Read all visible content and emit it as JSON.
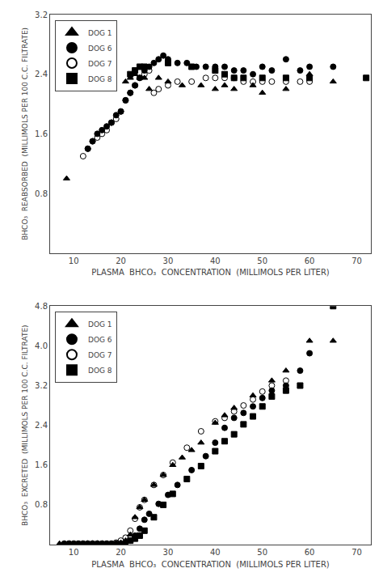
{
  "chart_data": [
    {
      "type": "scatter",
      "xlabel": "PLASMA  BHCO₃  CONCENTRATION  (MILLIMOLS PER LITER)",
      "ylabel": "BHCO₃  REABSORBED  (MILLIMOLS PER 100 C.C. FILTRATE)",
      "xlim": [
        5,
        73
      ],
      "ylim": [
        0,
        3.2
      ],
      "xticks": [
        10,
        20,
        30,
        40,
        50,
        60,
        70
      ],
      "yticks": [
        0.8,
        1.6,
        2.4,
        3.2
      ],
      "grid": false,
      "legend": "upper left",
      "series": [
        {
          "name": "DOG 1",
          "color": "#000000",
          "marker": "triangle-up",
          "x": [
            8.5,
            21,
            22,
            23,
            24,
            25,
            26,
            28,
            30,
            33,
            37,
            40,
            42,
            44,
            48,
            50,
            55,
            60,
            65
          ],
          "values": [
            1.0,
            2.3,
            2.35,
            2.4,
            2.35,
            2.35,
            2.2,
            2.35,
            2.3,
            2.25,
            2.25,
            2.2,
            2.25,
            2.2,
            2.25,
            2.15,
            2.2,
            2.4,
            2.3
          ]
        },
        {
          "name": "DOG 6",
          "color": "#000000",
          "marker": "circle",
          "x": [
            13,
            14,
            15,
            16,
            17,
            18,
            19,
            20,
            21,
            22,
            23,
            24,
            25,
            26,
            27,
            28,
            29,
            30,
            32,
            34,
            36,
            38,
            40,
            42,
            44,
            46,
            48,
            50,
            52,
            55,
            58,
            60,
            65
          ],
          "values": [
            1.4,
            1.5,
            1.6,
            1.65,
            1.7,
            1.75,
            1.85,
            1.9,
            2.05,
            2.15,
            2.25,
            2.35,
            2.45,
            2.5,
            2.55,
            2.6,
            2.65,
            2.6,
            2.55,
            2.55,
            2.5,
            2.5,
            2.5,
            2.5,
            2.45,
            2.45,
            2.4,
            2.5,
            2.45,
            2.6,
            2.45,
            2.5,
            2.5
          ]
        },
        {
          "name": "DOG 7",
          "color": "#000000",
          "marker": "circle-open",
          "x": [
            12,
            13,
            14,
            15,
            16,
            17,
            18,
            19,
            20,
            21,
            22,
            23,
            24,
            25,
            26,
            27,
            28,
            30,
            32,
            35,
            38,
            40,
            42,
            44,
            46,
            48,
            50,
            52,
            55,
            58,
            60
          ],
          "values": [
            1.3,
            1.4,
            1.5,
            1.55,
            1.6,
            1.65,
            1.75,
            1.8,
            1.9,
            2.05,
            2.15,
            2.25,
            2.35,
            2.4,
            2.45,
            2.15,
            2.2,
            2.25,
            2.3,
            2.3,
            2.35,
            2.35,
            2.35,
            2.35,
            2.3,
            2.3,
            2.3,
            2.3,
            2.3,
            2.3,
            2.3
          ]
        },
        {
          "name": "DOG 8",
          "color": "#000000",
          "marker": "square",
          "x": [
            22,
            23,
            24,
            25,
            30,
            35,
            40,
            42,
            44,
            46,
            50,
            55,
            60,
            72
          ],
          "values": [
            2.4,
            2.45,
            2.5,
            2.5,
            2.55,
            2.5,
            2.45,
            2.4,
            2.35,
            2.35,
            2.35,
            2.35,
            2.35,
            2.35
          ]
        }
      ]
    },
    {
      "type": "scatter",
      "xlabel": "PLASMA  BHCO₃  CONCENTRATION  (MILLIMOLS PER LITER)",
      "ylabel": "BHCO₃  EXCRETED  (MILLIMOLS PER 100 C.C. FILTRATE)",
      "xlim": [
        5,
        73
      ],
      "ylim": [
        0,
        4.8
      ],
      "xticks": [
        10,
        20,
        30,
        40,
        50,
        60,
        70
      ],
      "yticks": [
        0.8,
        1.6,
        2.4,
        3.2,
        {
          "value": 4.0,
          "label": "4.0"
        },
        4.8
      ],
      "grid": false,
      "legend": "upper left",
      "series": [
        {
          "name": "DOG 1",
          "color": "#000000",
          "marker": "triangle-up",
          "x": [
            7,
            8,
            9,
            10,
            11,
            12,
            13,
            14,
            15,
            16,
            17,
            18,
            19,
            20,
            21,
            22,
            23,
            24,
            25,
            27,
            29,
            31,
            33,
            35,
            37,
            40,
            42,
            44,
            48,
            52,
            55,
            60,
            65
          ],
          "values": [
            0.02,
            0.02,
            0.02,
            0.02,
            0.02,
            0.02,
            0.02,
            0.02,
            0.02,
            0.02,
            0.02,
            0.02,
            0.02,
            0.04,
            0.08,
            0.2,
            0.55,
            0.75,
            0.9,
            1.2,
            1.4,
            1.6,
            1.75,
            1.9,
            2.05,
            2.45,
            2.6,
            2.75,
            3.0,
            3.3,
            3.5,
            4.1,
            4.1
          ]
        },
        {
          "name": "DOG 6",
          "color": "#000000",
          "marker": "circle",
          "x": [
            8,
            9,
            10,
            11,
            12,
            13,
            14,
            15,
            16,
            17,
            18,
            19,
            20,
            21,
            22,
            23,
            24,
            25,
            26,
            28,
            30,
            32,
            35,
            38,
            40,
            42,
            44,
            46,
            48,
            50,
            52,
            55,
            58,
            60
          ],
          "values": [
            0.02,
            0.02,
            0.02,
            0.02,
            0.02,
            0.02,
            0.02,
            0.02,
            0.02,
            0.02,
            0.02,
            0.02,
            0.02,
            0.04,
            0.08,
            0.18,
            0.32,
            0.5,
            0.62,
            0.82,
            1.0,
            1.2,
            1.5,
            1.78,
            2.05,
            2.35,
            2.55,
            2.65,
            2.78,
            2.95,
            3.1,
            3.2,
            3.5,
            3.85
          ]
        },
        {
          "name": "DOG 7",
          "color": "#000000",
          "marker": "circle-open",
          "x": [
            9,
            10,
            11,
            12,
            13,
            14,
            15,
            16,
            17,
            18,
            19,
            20,
            21,
            22,
            23,
            24,
            25,
            27,
            29,
            31,
            34,
            37,
            40,
            42,
            44,
            46,
            48,
            50,
            52,
            55
          ],
          "values": [
            0.02,
            0.02,
            0.02,
            0.02,
            0.02,
            0.02,
            0.02,
            0.02,
            0.02,
            0.02,
            0.04,
            0.08,
            0.14,
            0.28,
            0.52,
            0.75,
            0.9,
            1.2,
            1.4,
            1.65,
            1.95,
            2.28,
            2.48,
            2.55,
            2.68,
            2.8,
            2.92,
            3.08,
            3.2,
            3.3
          ]
        },
        {
          "name": "DOG 8",
          "color": "#000000",
          "marker": "square",
          "x": [
            22,
            23,
            24,
            25,
            27,
            29,
            31,
            34,
            37,
            40,
            42,
            44,
            46,
            48,
            50,
            52,
            55,
            58,
            65
          ],
          "values": [
            0.08,
            0.12,
            0.18,
            0.28,
            0.55,
            0.8,
            1.02,
            1.32,
            1.58,
            1.88,
            2.08,
            2.22,
            2.42,
            2.58,
            2.78,
            2.98,
            3.1,
            3.2,
            4.8
          ]
        }
      ]
    }
  ]
}
